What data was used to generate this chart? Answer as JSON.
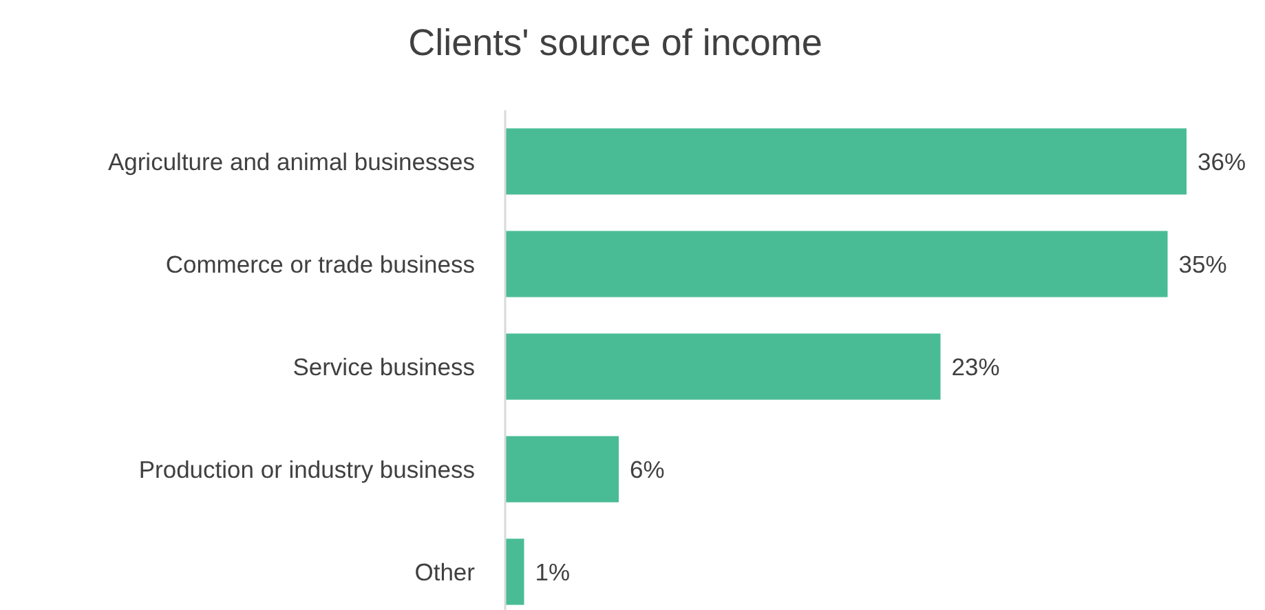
{
  "chart_data": {
    "type": "bar",
    "orientation": "horizontal",
    "title": "Clients' source of income",
    "categories": [
      "Agriculture and animal businesses",
      "Commerce or trade business",
      "Service business",
      "Production or industry business",
      "Other"
    ],
    "values": [
      36,
      35,
      23,
      6,
      1
    ],
    "value_labels": [
      "36%",
      "35%",
      "23%",
      "6%",
      "1%"
    ],
    "color": "#49bc96"
  }
}
